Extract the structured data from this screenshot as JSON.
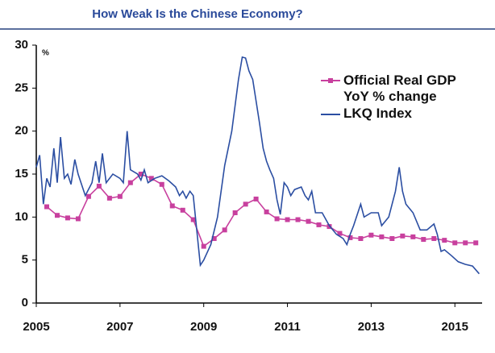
{
  "chart_data": {
    "type": "line",
    "title": "How Weak Is the Chinese Economy?",
    "ylabel": "%",
    "xlim": [
      2005,
      2015.65
    ],
    "xticks": [
      2005,
      2007,
      2009,
      2011,
      2013,
      2015
    ],
    "ylim": [
      0,
      30
    ],
    "yticks": [
      0,
      5,
      10,
      15,
      20,
      25,
      30
    ],
    "series": [
      {
        "name": "Official Real GDP YoY % change",
        "color": "#c8409e",
        "marker": "square",
        "x": [
          2005.25,
          2005.5,
          2005.75,
          2006.0,
          2006.25,
          2006.5,
          2006.75,
          2007.0,
          2007.25,
          2007.5,
          2007.75,
          2008.0,
          2008.25,
          2008.5,
          2008.75,
          2009.0,
          2009.25,
          2009.5,
          2009.75,
          2010.0,
          2010.25,
          2010.5,
          2010.75,
          2011.0,
          2011.25,
          2011.5,
          2011.75,
          2012.0,
          2012.25,
          2012.5,
          2012.75,
          2013.0,
          2013.25,
          2013.5,
          2013.75,
          2014.0,
          2014.25,
          2014.5,
          2014.75,
          2015.0,
          2015.25,
          2015.5
        ],
        "values": [
          11.2,
          10.2,
          9.9,
          9.8,
          12.4,
          13.6,
          12.2,
          12.4,
          14.0,
          15.0,
          14.5,
          13.8,
          11.3,
          10.8,
          9.7,
          6.6,
          7.5,
          8.5,
          10.5,
          11.5,
          12.1,
          10.6,
          9.8,
          9.7,
          9.7,
          9.5,
          9.1,
          8.9,
          8.1,
          7.6,
          7.5,
          7.9,
          7.7,
          7.5,
          7.8,
          7.7,
          7.4,
          7.5,
          7.3,
          7.0,
          7.0,
          7.0
        ]
      },
      {
        "name": "LKQ Index",
        "color": "#2b4ea2",
        "x": [
          2005.0,
          2005.08,
          2005.17,
          2005.25,
          2005.33,
          2005.42,
          2005.5,
          2005.58,
          2005.67,
          2005.75,
          2005.83,
          2005.92,
          2006.0,
          2006.17,
          2006.33,
          2006.42,
          2006.5,
          2006.58,
          2006.67,
          2006.83,
          2007.0,
          2007.08,
          2007.17,
          2007.25,
          2007.42,
          2007.5,
          2007.58,
          2007.67,
          2007.83,
          2008.0,
          2008.17,
          2008.33,
          2008.42,
          2008.5,
          2008.58,
          2008.67,
          2008.75,
          2008.92,
          2009.0,
          2009.17,
          2009.33,
          2009.5,
          2009.67,
          2009.83,
          2009.92,
          2010.0,
          2010.08,
          2010.17,
          2010.33,
          2010.42,
          2010.5,
          2010.58,
          2010.67,
          2010.75,
          2010.83,
          2010.92,
          2011.0,
          2011.08,
          2011.17,
          2011.33,
          2011.42,
          2011.5,
          2011.58,
          2011.67,
          2011.83,
          2012.0,
          2012.17,
          2012.33,
          2012.42,
          2012.5,
          2012.58,
          2012.75,
          2012.83,
          2013.0,
          2013.17,
          2013.25,
          2013.42,
          2013.58,
          2013.67,
          2013.75,
          2013.83,
          2014.0,
          2014.17,
          2014.33,
          2014.5,
          2014.58,
          2014.67,
          2014.75,
          2014.92,
          2015.08,
          2015.25,
          2015.42,
          2015.58
        ],
        "values": [
          15.8,
          17.2,
          11.5,
          14.5,
          13.5,
          18.0,
          14.0,
          19.3,
          14.5,
          15.0,
          13.8,
          16.7,
          15.0,
          12.5,
          14.0,
          16.5,
          14.0,
          17.4,
          14.0,
          15.0,
          14.5,
          14.0,
          20.0,
          15.5,
          15.0,
          14.3,
          15.5,
          14.0,
          14.5,
          14.8,
          14.2,
          13.5,
          12.5,
          13.0,
          12.2,
          13.0,
          12.5,
          4.4,
          5.0,
          6.8,
          10.0,
          16.0,
          20.0,
          26.0,
          28.6,
          28.5,
          27.0,
          26.0,
          21.0,
          18.0,
          16.5,
          15.5,
          14.5,
          12.0,
          10.3,
          14.0,
          13.5,
          12.5,
          13.2,
          13.5,
          12.5,
          12.0,
          13.0,
          10.5,
          10.5,
          9.0,
          8.0,
          7.5,
          6.8,
          8.0,
          9.0,
          11.5,
          10.0,
          10.5,
          10.5,
          9.0,
          10.0,
          13.0,
          15.8,
          13.0,
          11.5,
          10.5,
          8.5,
          8.5,
          9.2,
          8.0,
          6.0,
          6.2,
          5.5,
          4.8,
          4.5,
          4.3,
          3.4
        ]
      }
    ]
  }
}
